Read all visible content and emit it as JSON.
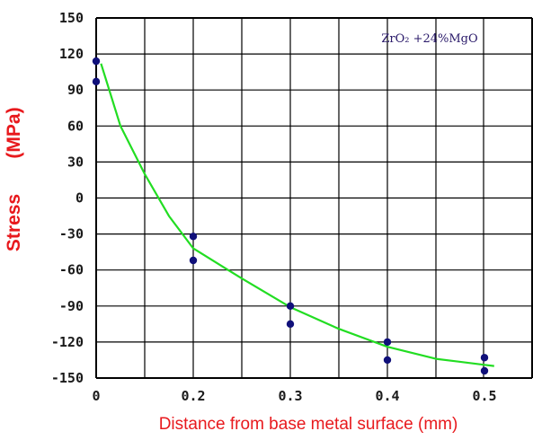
{
  "chart_data": {
    "type": "scatter",
    "xlabel": "Distance from base metal surface (mm)",
    "ylabel_main": "Stress",
    "ylabel_unit": "(MPa)",
    "annotation": "ZrO₂ +24%MgO",
    "x_ticks": [
      "0",
      "0.2",
      "0.3",
      "0.4",
      "0.5"
    ],
    "y_ticks": [
      "150",
      "120",
      "90",
      "60",
      "30",
      "0",
      "-30",
      "-60",
      "-90",
      "-120",
      "-150"
    ],
    "ylim": [
      -150,
      150
    ],
    "grid": true,
    "colors": {
      "points": "#10107a",
      "curve": "#22dd22",
      "labels": "#e8191d",
      "grid": "#000000"
    },
    "series": [
      {
        "type": "scatter",
        "points": [
          {
            "x": 0.0,
            "y": 114
          },
          {
            "x": 0.0,
            "y": 97
          },
          {
            "x": 0.2,
            "y": -32
          },
          {
            "x": 0.2,
            "y": -52
          },
          {
            "x": 0.3,
            "y": -90
          },
          {
            "x": 0.3,
            "y": -105
          },
          {
            "x": 0.4,
            "y": -120
          },
          {
            "x": 0.4,
            "y": -135
          },
          {
            "x": 0.5,
            "y": -133
          },
          {
            "x": 0.5,
            "y": -144
          }
        ]
      },
      {
        "type": "line",
        "points": [
          {
            "x": 0.01,
            "y": 112
          },
          {
            "x": 0.05,
            "y": 60
          },
          {
            "x": 0.1,
            "y": 20
          },
          {
            "x": 0.15,
            "y": -15
          },
          {
            "x": 0.2,
            "y": -42
          },
          {
            "x": 0.25,
            "y": -67
          },
          {
            "x": 0.3,
            "y": -91
          },
          {
            "x": 0.35,
            "y": -109
          },
          {
            "x": 0.4,
            "y": -124
          },
          {
            "x": 0.45,
            "y": -134
          },
          {
            "x": 0.5,
            "y": -139
          },
          {
            "x": 0.51,
            "y": -140
          }
        ]
      }
    ]
  }
}
